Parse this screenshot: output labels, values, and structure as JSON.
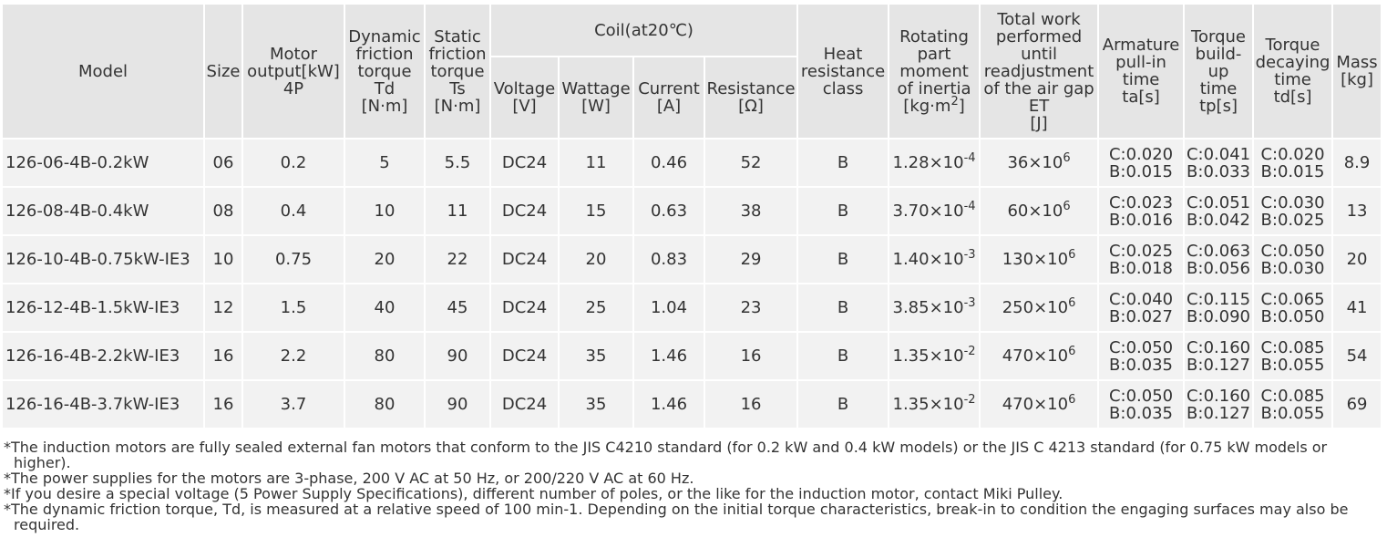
{
  "headers": {
    "model": "Model",
    "size": "Size",
    "motor_output": [
      "Motor",
      "output[kW]",
      "4P"
    ],
    "dynamic_torque": [
      "Dynamic",
      "friction",
      "torque",
      "Td",
      "[N·m]"
    ],
    "static_torque": [
      "Static",
      "friction",
      "torque",
      "Ts",
      "[N·m]"
    ],
    "coil_group": "Coil(at20℃)",
    "voltage": [
      "Voltage",
      "[V]"
    ],
    "wattage": [
      "Wattage",
      "[W]"
    ],
    "current": [
      "Current",
      "[A]"
    ],
    "resistance": [
      "Resistance",
      "[Ω]"
    ],
    "heat_class": [
      "Heat",
      "resistance",
      "class"
    ],
    "inertia": [
      "Rotating",
      "part",
      "moment",
      "of inertia",
      "[kg·m",
      "2",
      "]"
    ],
    "total_work": [
      "Total work",
      "performed",
      "until",
      "readjustment",
      "of the air gap",
      "ET",
      "[J]"
    ],
    "armature_time": [
      "Armature",
      "pull-in",
      "time",
      "ta[s]"
    ],
    "buildup_time": [
      "Torque",
      "build-",
      "up",
      "time",
      "tp[s]"
    ],
    "decay_time": [
      "Torque",
      "decaying",
      "time",
      "td[s]"
    ],
    "mass": [
      "Mass",
      "[kg]"
    ]
  },
  "rows": [
    {
      "model": "126-06-4B-0.2kW",
      "size": "06",
      "output": "0.2",
      "td": "5",
      "ts": "5.5",
      "voltage": "DC24",
      "wattage": "11",
      "current": "0.46",
      "resistance": "52",
      "heat": "B",
      "inertia_base": "1.28×10",
      "inertia_exp": "-4",
      "et_base": "36×10",
      "et_exp": "6",
      "ta_c": "C:0.020",
      "ta_b": "B:0.015",
      "tp_c": "C:0.041",
      "tp_b": "B:0.033",
      "tdd_c": "C:0.020",
      "tdd_b": "B:0.015",
      "mass": "8.9"
    },
    {
      "model": "126-08-4B-0.4kW",
      "size": "08",
      "output": "0.4",
      "td": "10",
      "ts": "11",
      "voltage": "DC24",
      "wattage": "15",
      "current": "0.63",
      "resistance": "38",
      "heat": "B",
      "inertia_base": "3.70×10",
      "inertia_exp": "-4",
      "et_base": "60×10",
      "et_exp": "6",
      "ta_c": "C:0.023",
      "ta_b": "B:0.016",
      "tp_c": "C:0.051",
      "tp_b": "B:0.042",
      "tdd_c": "C:0.030",
      "tdd_b": "B:0.025",
      "mass": "13"
    },
    {
      "model": "126-10-4B-0.75kW-IE3",
      "size": "10",
      "output": "0.75",
      "td": "20",
      "ts": "22",
      "voltage": "DC24",
      "wattage": "20",
      "current": "0.83",
      "resistance": "29",
      "heat": "B",
      "inertia_base": "1.40×10",
      "inertia_exp": "-3",
      "et_base": "130×10",
      "et_exp": "6",
      "ta_c": "C:0.025",
      "ta_b": "B:0.018",
      "tp_c": "C:0.063",
      "tp_b": "B:0.056",
      "tdd_c": "C:0.050",
      "tdd_b": "B:0.030",
      "mass": "20"
    },
    {
      "model": "126-12-4B-1.5kW-IE3",
      "size": "12",
      "output": "1.5",
      "td": "40",
      "ts": "45",
      "voltage": "DC24",
      "wattage": "25",
      "current": "1.04",
      "resistance": "23",
      "heat": "B",
      "inertia_base": "3.85×10",
      "inertia_exp": "-3",
      "et_base": "250×10",
      "et_exp": "6",
      "ta_c": "C:0.040",
      "ta_b": "B:0.027",
      "tp_c": "C:0.115",
      "tp_b": "B:0.090",
      "tdd_c": "C:0.065",
      "tdd_b": "B:0.050",
      "mass": "41"
    },
    {
      "model": "126-16-4B-2.2kW-IE3",
      "size": "16",
      "output": "2.2",
      "td": "80",
      "ts": "90",
      "voltage": "DC24",
      "wattage": "35",
      "current": "1.46",
      "resistance": "16",
      "heat": "B",
      "inertia_base": "1.35×10",
      "inertia_exp": "-2",
      "et_base": "470×10",
      "et_exp": "6",
      "ta_c": "C:0.050",
      "ta_b": "B:0.035",
      "tp_c": "C:0.160",
      "tp_b": "B:0.127",
      "tdd_c": "C:0.085",
      "tdd_b": "B:0.055",
      "mass": "54"
    },
    {
      "model": "126-16-4B-3.7kW-IE3",
      "size": "16",
      "output": "3.7",
      "td": "80",
      "ts": "90",
      "voltage": "DC24",
      "wattage": "35",
      "current": "1.46",
      "resistance": "16",
      "heat": "B",
      "inertia_base": "1.35×10",
      "inertia_exp": "-2",
      "et_base": "470×10",
      "et_exp": "6",
      "ta_c": "C:0.050",
      "ta_b": "B:0.035",
      "tp_c": "C:0.160",
      "tp_b": "B:0.127",
      "tdd_c": "C:0.085",
      "tdd_b": "B:0.055",
      "mass": "69"
    }
  ],
  "notes": [
    "*The induction motors are fully sealed external fan motors that conform to the JIS C4210 standard (for 0.2 kW and 0.4 kW models) or the JIS C 4213 standard (for 0.75 kW models or higher).",
    "*The power supplies for the motors are 3-phase, 200 V AC at 50 Hz, or 200/220 V AC at 60 Hz.",
    "*If you desire a special voltage (5 Power Supply Specifications), different number of poles, or the like for the induction motor, contact Miki Pulley.",
    "*The dynamic friction torque, Td, is measured at a relative speed of 100 min-1. Depending on the initial torque characteristics, break-in to condition the engaging surfaces may also be required."
  ],
  "colors": {
    "header_bg": "#e5e5e5",
    "cell_bg": "#f2f2f2",
    "text": "#333333"
  }
}
